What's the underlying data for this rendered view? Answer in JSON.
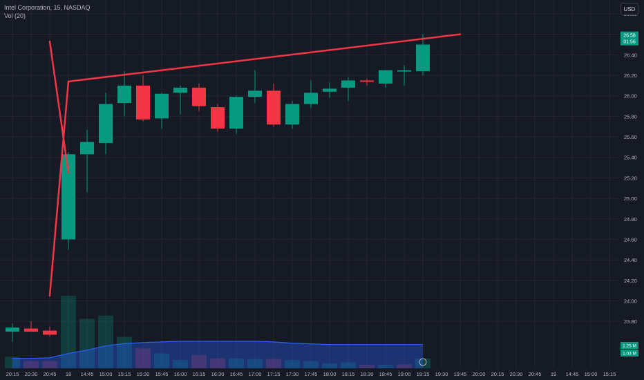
{
  "header": {
    "symbol": "Intel Corporation, 15, NASDAQ",
    "indicator": "Vol (20)",
    "currency": "USD"
  },
  "colors": {
    "background": "#161a25",
    "up": "#089981",
    "down": "#f23645",
    "trendline": "#f23645",
    "grid": "#232632",
    "volume_ma": "#2962ff",
    "axis_text": "#b2b5be"
  },
  "chart_data": {
    "type": "candlestick",
    "x_ticks": [
      "20:15",
      "20:30",
      "20:45",
      "18",
      "14:45",
      "15:00",
      "15:15",
      "15:30",
      "15:45",
      "16:00",
      "16:15",
      "16:30",
      "16:45",
      "17:00",
      "17:15",
      "17:30",
      "17:45",
      "18:00",
      "18:15",
      "18:30",
      "18:45",
      "19:00",
      "19:15",
      "19:30",
      "19:45",
      "20:00",
      "20:15",
      "20:30",
      "20:45",
      "19",
      "14:45",
      "15:00",
      "15:15"
    ],
    "y_ticks": [
      "26.80",
      "26.60",
      "26.40",
      "26.20",
      "26.00",
      "25.80",
      "25.60",
      "25.40",
      "25.20",
      "25.00",
      "24.80",
      "24.60",
      "24.40",
      "24.20",
      "24.00",
      "23.80"
    ],
    "ylim": [
      23.7,
      26.8
    ],
    "candles": [
      {
        "time": "20:15",
        "open": 23.7,
        "high": 23.78,
        "low": 23.6,
        "close": 23.74
      },
      {
        "time": "20:30",
        "open": 23.73,
        "high": 23.8,
        "low": 23.7,
        "close": 23.7
      },
      {
        "time": "20:45",
        "open": 23.71,
        "high": 23.75,
        "low": 23.65,
        "close": 23.67
      },
      {
        "time": "18",
        "open": 24.6,
        "high": 25.45,
        "low": 24.5,
        "close": 25.43
      },
      {
        "time": "14:45",
        "open": 25.43,
        "high": 25.67,
        "low": 25.06,
        "close": 25.55
      },
      {
        "time": "15:00",
        "open": 25.54,
        "high": 26.03,
        "low": 25.43,
        "close": 25.92
      },
      {
        "time": "15:15",
        "open": 25.93,
        "high": 26.24,
        "low": 25.8,
        "close": 26.1
      },
      {
        "time": "15:30",
        "open": 26.1,
        "high": 26.2,
        "low": 25.75,
        "close": 25.77
      },
      {
        "time": "15:45",
        "open": 25.78,
        "high": 26.03,
        "low": 25.68,
        "close": 26.02
      },
      {
        "time": "16:00",
        "open": 26.03,
        "high": 26.1,
        "low": 25.82,
        "close": 26.08
      },
      {
        "time": "16:15",
        "open": 26.08,
        "high": 26.12,
        "low": 25.85,
        "close": 25.9
      },
      {
        "time": "16:30",
        "open": 25.89,
        "high": 25.92,
        "low": 25.65,
        "close": 25.68
      },
      {
        "time": "16:45",
        "open": 25.68,
        "high": 26.0,
        "low": 25.63,
        "close": 25.99
      },
      {
        "time": "17:00",
        "open": 25.99,
        "high": 26.25,
        "low": 25.93,
        "close": 26.05
      },
      {
        "time": "17:15",
        "open": 26.05,
        "high": 26.12,
        "low": 25.7,
        "close": 25.72
      },
      {
        "time": "17:30",
        "open": 25.72,
        "high": 25.95,
        "low": 25.68,
        "close": 25.92
      },
      {
        "time": "17:45",
        "open": 25.92,
        "high": 26.15,
        "low": 25.88,
        "close": 26.03
      },
      {
        "time": "18:00",
        "open": 26.04,
        "high": 26.13,
        "low": 25.98,
        "close": 26.07
      },
      {
        "time": "18:15",
        "open": 26.08,
        "high": 26.18,
        "low": 25.95,
        "close": 26.15
      },
      {
        "time": "18:30",
        "open": 26.15,
        "high": 26.17,
        "low": 26.1,
        "close": 26.14
      },
      {
        "time": "18:45",
        "open": 26.12,
        "high": 26.25,
        "low": 26.08,
        "close": 26.25
      },
      {
        "time": "19:00",
        "open": 26.25,
        "high": 26.3,
        "low": 26.1,
        "close": 26.25
      },
      {
        "time": "19:15",
        "open": 26.24,
        "high": 26.6,
        "low": 26.2,
        "close": 26.5
      }
    ],
    "volumes": [
      {
        "time": "20:15",
        "value": 0.35,
        "dir": "up"
      },
      {
        "time": "20:30",
        "value": 0.22,
        "dir": "down"
      },
      {
        "time": "20:45",
        "value": 0.22,
        "dir": "down"
      },
      {
        "time": "18",
        "value": 2.2,
        "dir": "up"
      },
      {
        "time": "14:45",
        "value": 1.5,
        "dir": "up"
      },
      {
        "time": "15:00",
        "value": 1.6,
        "dir": "up"
      },
      {
        "time": "15:15",
        "value": 0.95,
        "dir": "up"
      },
      {
        "time": "15:30",
        "value": 0.6,
        "dir": "down"
      },
      {
        "time": "15:45",
        "value": 0.45,
        "dir": "up"
      },
      {
        "time": "16:00",
        "value": 0.25,
        "dir": "up"
      },
      {
        "time": "16:15",
        "value": 0.4,
        "dir": "down"
      },
      {
        "time": "16:30",
        "value": 0.3,
        "dir": "down"
      },
      {
        "time": "16:45",
        "value": 0.3,
        "dir": "up"
      },
      {
        "time": "17:00",
        "value": 0.28,
        "dir": "up"
      },
      {
        "time": "17:15",
        "value": 0.28,
        "dir": "down"
      },
      {
        "time": "17:30",
        "value": 0.25,
        "dir": "up"
      },
      {
        "time": "17:45",
        "value": 0.22,
        "dir": "up"
      },
      {
        "time": "18:00",
        "value": 0.15,
        "dir": "up"
      },
      {
        "time": "18:15",
        "value": 0.18,
        "dir": "up"
      },
      {
        "time": "18:30",
        "value": 0.1,
        "dir": "down"
      },
      {
        "time": "18:45",
        "value": 0.1,
        "dir": "up"
      },
      {
        "time": "19:00",
        "value": 0.12,
        "dir": "down"
      },
      {
        "time": "19:15",
        "value": 0.3,
        "dir": "up"
      }
    ],
    "volume_ma": [
      0.3,
      0.3,
      0.32,
      0.45,
      0.55,
      0.68,
      0.75,
      0.78,
      0.8,
      0.82,
      0.82,
      0.82,
      0.82,
      0.82,
      0.8,
      0.76,
      0.74,
      0.72,
      0.72,
      0.72,
      0.72,
      0.72,
      0.72
    ],
    "volume_max": 3.0,
    "trendlines": [
      {
        "from": {
          "time": "20:45",
          "price": 24.05
        },
        "to": {
          "time": "18",
          "price": 26.14
        }
      },
      {
        "from": {
          "time": "18",
          "price": 26.14
        },
        "to": {
          "time": "19:45",
          "price": 26.6
        }
      },
      {
        "from": {
          "time": "18",
          "price": 25.25
        },
        "to": {
          "time": "20:45",
          "price": 26.53
        }
      }
    ],
    "price_labels": [
      {
        "value": 26.58,
        "text": "26.58",
        "sub": "01:56",
        "color": "#089981"
      }
    ],
    "volume_labels": [
      {
        "text": "1.25 M",
        "color": "#089981"
      },
      {
        "text": "1.03 M",
        "color": "#089981"
      }
    ]
  }
}
